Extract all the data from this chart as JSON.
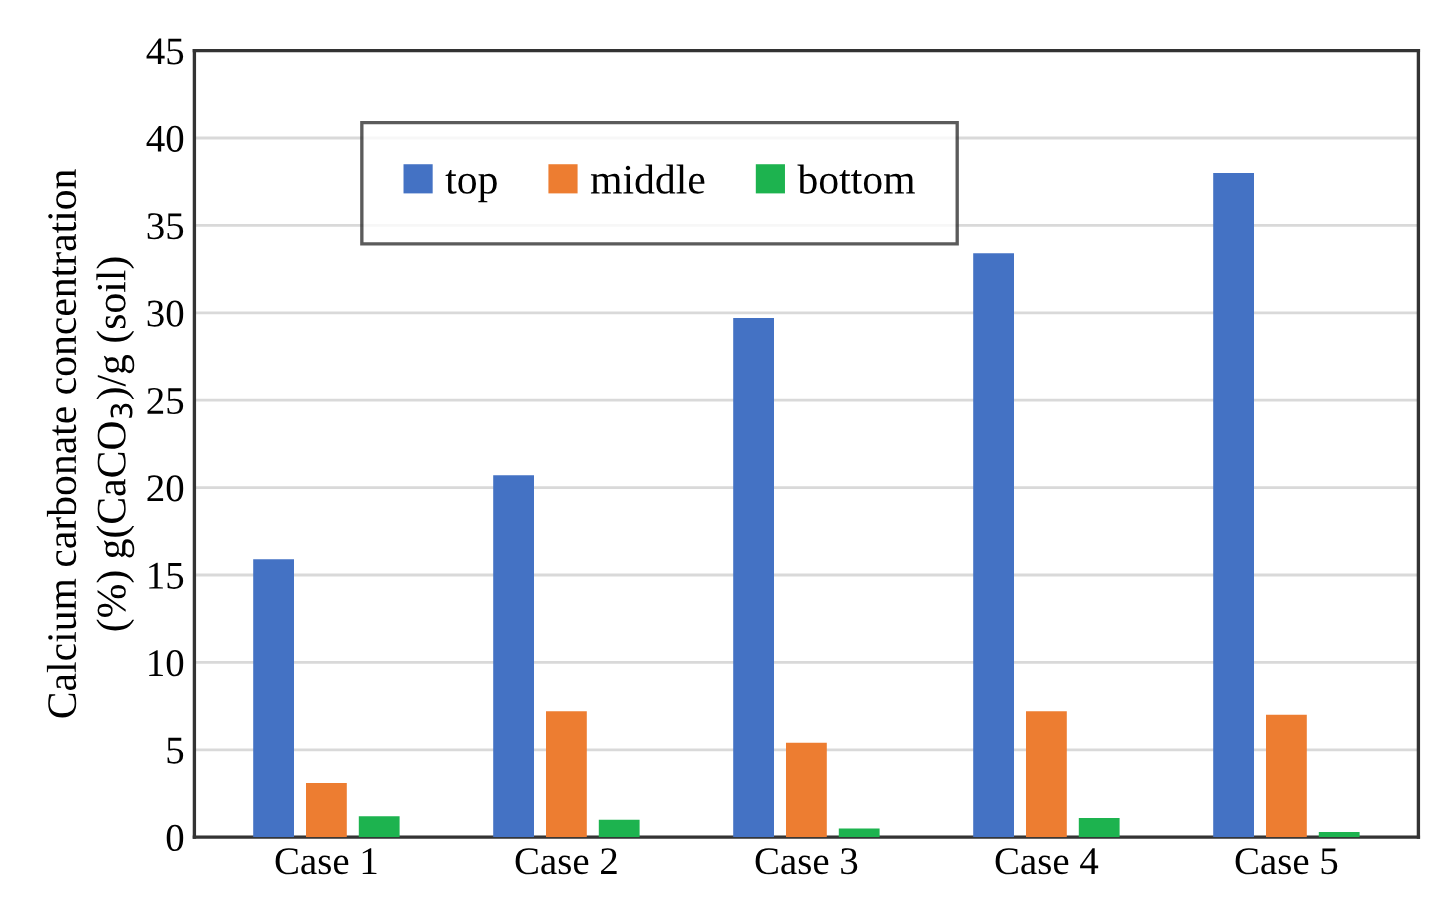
{
  "chart_data": {
    "type": "bar",
    "ylabel": "Calcium carbonate concentration\n(%) g(CaCO$_{3}$)/g (soil)",
    "categories": [
      "Case 1",
      "Case 2",
      "Case 3",
      "Case 4",
      "Case 5"
    ],
    "series": [
      {
        "name": "top",
        "color": "#4472c4",
        "values": [
          15.9,
          20.7,
          29.7,
          33.4,
          38.0
        ]
      },
      {
        "name": "middle",
        "color": "#ed7d31",
        "values": [
          3.1,
          7.2,
          5.4,
          7.2,
          7.0
        ]
      },
      {
        "name": "bottom",
        "color": "#1db34f",
        "values": [
          1.2,
          1.0,
          0.5,
          1.1,
          0.3
        ]
      }
    ],
    "ylim": [
      0,
      45
    ],
    "yticks": [
      0,
      5,
      10,
      15,
      20,
      25,
      30,
      35,
      40,
      45
    ],
    "grid": "y",
    "legend": "top"
  }
}
